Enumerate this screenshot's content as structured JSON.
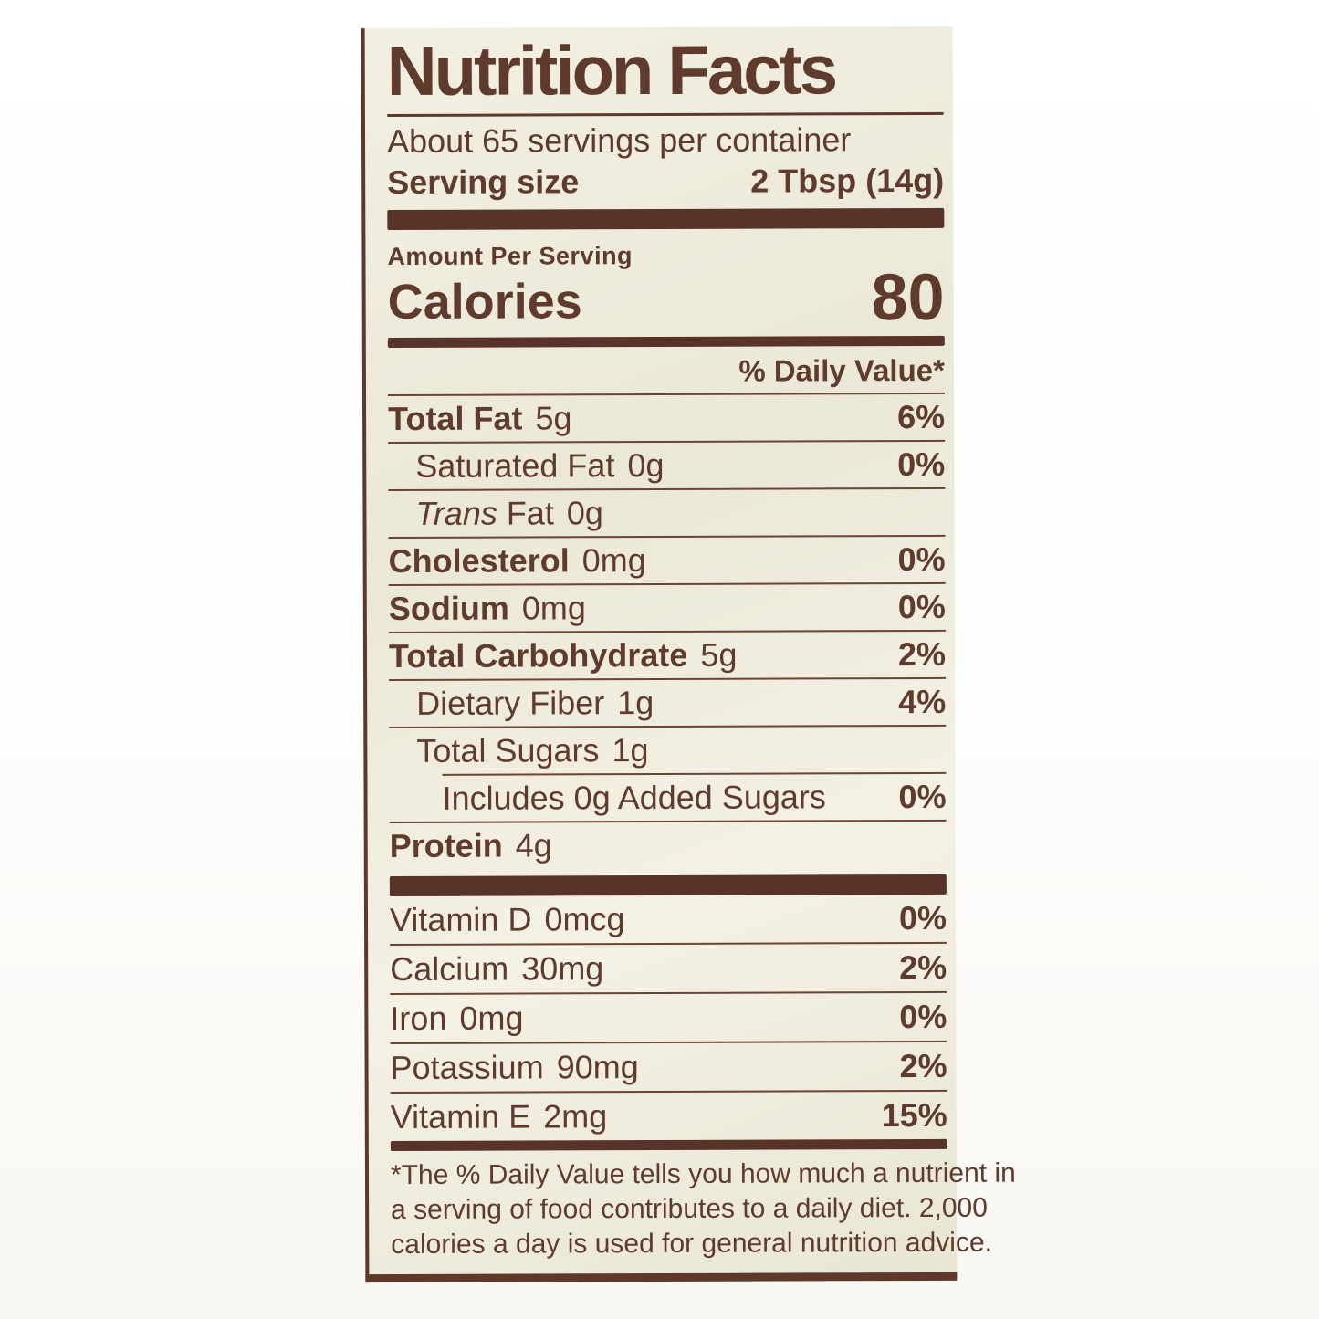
{
  "colors": {
    "ink": "#5f3b2d",
    "bar": "#58332a",
    "label_bg": "#efebdc",
    "page_bg": "#ffffff"
  },
  "label": {
    "title": "Nutrition Facts",
    "servings_per_container": "About 65 servings per container",
    "serving_size_label": "Serving size",
    "serving_size_value": "2 Tbsp (14g)",
    "amount_per_serving": "Amount Per Serving",
    "calories_label": "Calories",
    "calories_value": "80",
    "daily_value_header": "% Daily Value*",
    "nutrients": [
      {
        "name": "Total Fat",
        "amount": "5g",
        "dv": "6%"
      },
      {
        "name": "Saturated Fat",
        "amount": "0g",
        "dv": "0%"
      },
      {
        "name_italic": "Trans",
        "name_rest": "Fat",
        "amount": "0g",
        "dv": ""
      },
      {
        "name": "Cholesterol",
        "amount": "0mg",
        "dv": "0%"
      },
      {
        "name": "Sodium",
        "amount": "0mg",
        "dv": "0%"
      },
      {
        "name": "Total Carbohydrate",
        "amount": "5g",
        "dv": "2%"
      },
      {
        "name": "Dietary Fiber",
        "amount": "1g",
        "dv": "4%"
      },
      {
        "name": "Total Sugars",
        "amount": "1g",
        "dv": ""
      },
      {
        "name": "Includes 0g Added Sugars",
        "amount": "",
        "dv": "0%"
      },
      {
        "name": "Protein",
        "amount": "4g",
        "dv": ""
      }
    ],
    "vitamins": [
      {
        "name": "Vitamin D",
        "amount": "0mcg",
        "dv": "0%"
      },
      {
        "name": "Calcium",
        "amount": "30mg",
        "dv": "2%"
      },
      {
        "name": "Iron",
        "amount": "0mg",
        "dv": "0%"
      },
      {
        "name": "Potassium",
        "amount": "90mg",
        "dv": "2%"
      },
      {
        "name": "Vitamin E",
        "amount": "2mg",
        "dv": "15%"
      }
    ],
    "footnote": [
      "*The % Daily Value tells you how much a nutrient in",
      "a serving of food contributes to a daily diet. 2,000",
      "calories a day is used for general nutrition advice."
    ]
  }
}
